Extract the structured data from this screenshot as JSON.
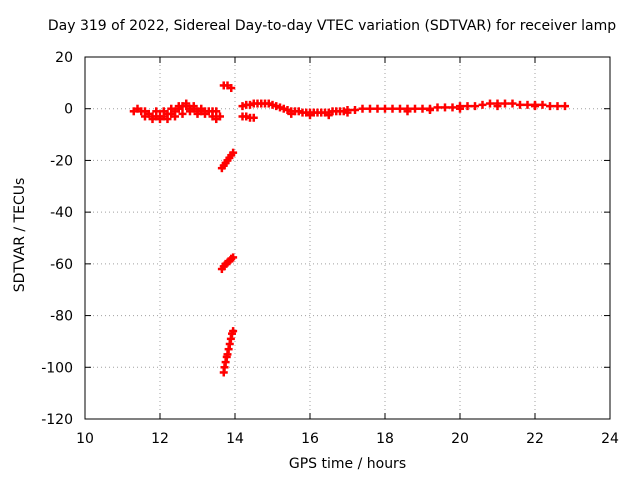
{
  "chart_data": {
    "type": "scatter",
    "title": "Day 319 of 2022, Sidereal Day-to-day VTEC variation (SDTVAR) for receiver lamp",
    "xlabel": "GPS time / hours",
    "ylabel": "SDTVAR / TECUs",
    "xlim": [
      10,
      24
    ],
    "ylim": [
      -120,
      20
    ],
    "xticks": [
      10,
      12,
      14,
      16,
      18,
      20,
      22,
      24
    ],
    "yticks": [
      20,
      0,
      -20,
      -40,
      -60,
      -80,
      -100,
      -120
    ],
    "grid": true,
    "marker_color": "#ff0000",
    "series": [
      {
        "name": "SDTVAR",
        "points": [
          [
            11.3,
            -1
          ],
          [
            11.4,
            0
          ],
          [
            11.5,
            -1
          ],
          [
            11.6,
            -1
          ],
          [
            11.7,
            -2
          ],
          [
            11.8,
            -3
          ],
          [
            11.9,
            -3
          ],
          [
            12.0,
            -3
          ],
          [
            12.1,
            -3
          ],
          [
            12.2,
            -2
          ],
          [
            12.3,
            -2
          ],
          [
            12.4,
            -1
          ],
          [
            12.5,
            0
          ],
          [
            12.6,
            1
          ],
          [
            12.7,
            1
          ],
          [
            12.8,
            0
          ],
          [
            12.9,
            0
          ],
          [
            13.0,
            -1
          ],
          [
            13.1,
            -1
          ],
          [
            13.2,
            -1
          ],
          [
            13.3,
            -1
          ],
          [
            13.4,
            -1
          ],
          [
            13.5,
            -1
          ],
          [
            13.6,
            -3
          ],
          [
            11.6,
            -3
          ],
          [
            11.8,
            -4
          ],
          [
            12.0,
            -4
          ],
          [
            12.2,
            -4
          ],
          [
            12.4,
            -3
          ],
          [
            12.6,
            -2
          ],
          [
            12.8,
            -1
          ],
          [
            13.0,
            -2
          ],
          [
            13.2,
            -2
          ],
          [
            13.4,
            -3
          ],
          [
            13.5,
            -4
          ],
          [
            11.9,
            -1
          ],
          [
            12.1,
            -1
          ],
          [
            12.3,
            0
          ],
          [
            12.5,
            1
          ],
          [
            12.7,
            2
          ],
          [
            12.9,
            1
          ],
          [
            13.1,
            0
          ],
          [
            13.7,
            9
          ],
          [
            13.8,
            9
          ],
          [
            13.9,
            8
          ],
          [
            13.65,
            -23
          ],
          [
            13.7,
            -22
          ],
          [
            13.75,
            -21
          ],
          [
            13.8,
            -20
          ],
          [
            13.85,
            -19
          ],
          [
            13.9,
            -18
          ],
          [
            13.95,
            -17
          ],
          [
            13.65,
            -62
          ],
          [
            13.7,
            -61
          ],
          [
            13.75,
            -60
          ],
          [
            13.8,
            -59.5
          ],
          [
            13.85,
            -59
          ],
          [
            13.9,
            -58
          ],
          [
            13.95,
            -57.5
          ],
          [
            13.7,
            -102
          ],
          [
            13.72,
            -100
          ],
          [
            13.75,
            -98
          ],
          [
            13.78,
            -96
          ],
          [
            13.8,
            -95
          ],
          [
            13.83,
            -93
          ],
          [
            13.86,
            -91
          ],
          [
            13.89,
            -89
          ],
          [
            13.92,
            -87
          ],
          [
            13.95,
            -86
          ],
          [
            14.2,
            -3
          ],
          [
            14.3,
            -3
          ],
          [
            14.4,
            -3.5
          ],
          [
            14.5,
            -3.5
          ],
          [
            14.2,
            1
          ],
          [
            14.3,
            1.5
          ],
          [
            14.4,
            1.5
          ],
          [
            14.5,
            2
          ],
          [
            14.6,
            2
          ],
          [
            14.7,
            2
          ],
          [
            14.8,
            2
          ],
          [
            14.9,
            2
          ],
          [
            15.0,
            1.5
          ],
          [
            15.1,
            1
          ],
          [
            15.2,
            0.5
          ],
          [
            15.3,
            0
          ],
          [
            15.4,
            -0.5
          ],
          [
            15.5,
            -1
          ],
          [
            15.6,
            -1
          ],
          [
            15.7,
            -1
          ],
          [
            15.8,
            -1.5
          ],
          [
            15.9,
            -1.5
          ],
          [
            16.0,
            -1.5
          ],
          [
            16.1,
            -1.5
          ],
          [
            16.2,
            -1.5
          ],
          [
            16.3,
            -1.5
          ],
          [
            16.4,
            -1.5
          ],
          [
            16.5,
            -1.5
          ],
          [
            16.6,
            -1
          ],
          [
            16.7,
            -1
          ],
          [
            16.8,
            -1
          ],
          [
            16.9,
            -1
          ],
          [
            17.0,
            -0.5
          ],
          [
            17.2,
            -0.5
          ],
          [
            17.4,
            0
          ],
          [
            17.6,
            0
          ],
          [
            17.8,
            0
          ],
          [
            18.0,
            0
          ],
          [
            18.2,
            0
          ],
          [
            18.4,
            0
          ],
          [
            18.6,
            0
          ],
          [
            18.8,
            0
          ],
          [
            19.0,
            0
          ],
          [
            19.2,
            0
          ],
          [
            19.4,
            0.5
          ],
          [
            19.6,
            0.5
          ],
          [
            19.8,
            0.5
          ],
          [
            20.0,
            1
          ],
          [
            20.2,
            1
          ],
          [
            20.4,
            1
          ],
          [
            20.6,
            1.5
          ],
          [
            20.8,
            2
          ],
          [
            21.0,
            2
          ],
          [
            21.2,
            2
          ],
          [
            21.4,
            2
          ],
          [
            21.6,
            1.5
          ],
          [
            21.8,
            1.5
          ],
          [
            22.0,
            1.5
          ],
          [
            22.2,
            1.5
          ],
          [
            22.4,
            1
          ],
          [
            22.6,
            1
          ],
          [
            22.8,
            1
          ],
          [
            15.5,
            -2
          ],
          [
            16.0,
            -2.5
          ],
          [
            16.5,
            -2.5
          ],
          [
            17.0,
            -1.5
          ],
          [
            18.6,
            -1
          ],
          [
            19.2,
            -0.5
          ],
          [
            20.0,
            0
          ],
          [
            21.0,
            1
          ],
          [
            22.0,
            1
          ]
        ]
      }
    ]
  }
}
